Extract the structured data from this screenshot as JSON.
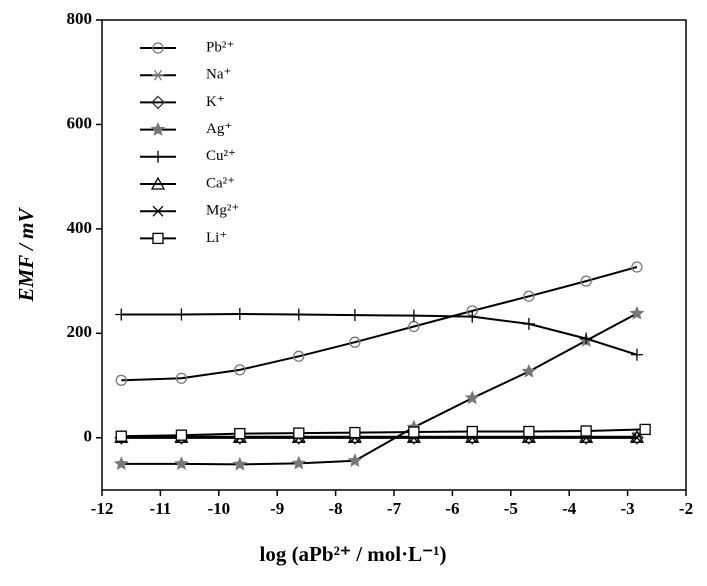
{
  "chart_data": {
    "type": "line",
    "x_label": "log (aPb²⁺ / mol·L⁻¹)",
    "y_label": "EMF / mV",
    "xlim": [
      -12,
      -2
    ],
    "xticks": [
      -12,
      -11,
      -10,
      -9,
      -8,
      -7,
      -6,
      -5,
      -4,
      -3,
      -2
    ],
    "ylim": [
      -100,
      800
    ],
    "yticks": [
      0,
      200,
      400,
      600,
      800
    ],
    "line_color": "#000000",
    "x": [
      -11.67,
      -10.64,
      -9.64,
      -8.63,
      -7.67,
      -6.66,
      -5.66,
      -4.69,
      -3.71,
      -2.84
    ],
    "series": [
      {
        "name": "Pb²⁺",
        "marker": "circle",
        "color": "#777777",
        "values": [
          110,
          114,
          130,
          156,
          183,
          213,
          243,
          271,
          300,
          327
        ]
      },
      {
        "name": "Na⁺",
        "marker": "asterisk",
        "color": "#777777",
        "values": [
          2,
          2,
          2,
          2,
          2,
          2,
          2,
          2,
          2,
          2
        ]
      },
      {
        "name": "K⁺",
        "marker": "diamond",
        "color": "#333333",
        "values": [
          0,
          0,
          0,
          0,
          0,
          0,
          0,
          0,
          0,
          0
        ]
      },
      {
        "name": "Ag⁺",
        "marker": "star",
        "color": "#777777",
        "values": [
          -50,
          -50,
          -51,
          -49,
          -44,
          20,
          76,
          127,
          186,
          238
        ]
      },
      {
        "name": "Cu²⁺",
        "marker": "plus",
        "color": "#000000",
        "values": [
          236,
          236,
          237,
          236,
          235,
          234,
          232,
          218,
          190,
          159
        ]
      },
      {
        "name": "Ca²⁺",
        "marker": "triangle",
        "color": "#000000",
        "values": [
          1,
          1,
          1,
          1,
          1,
          1,
          1,
          1,
          1,
          1
        ]
      },
      {
        "name": "Mg²⁺",
        "marker": "cross",
        "color": "#000000",
        "values": [
          0,
          0,
          0,
          0,
          0,
          0,
          0,
          0,
          0,
          0
        ]
      },
      {
        "name": "Li⁺",
        "marker": "square",
        "color": "#000000",
        "x": [
          -11.67,
          -10.64,
          -9.64,
          -8.63,
          -7.67,
          -6.66,
          -5.66,
          -4.69,
          -3.71,
          -2.7
        ],
        "values": [
          3,
          5,
          8,
          9,
          10,
          11,
          12,
          12,
          13,
          16
        ]
      }
    ]
  }
}
